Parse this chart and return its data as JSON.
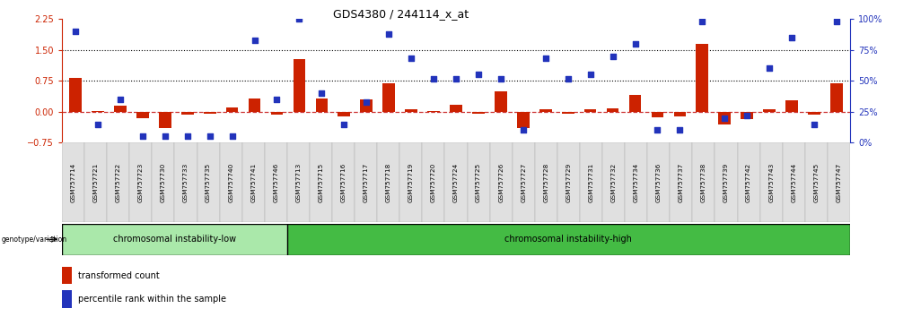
{
  "title": "GDS4380 / 244114_x_at",
  "samples": [
    "GSM757714",
    "GSM757721",
    "GSM757722",
    "GSM757723",
    "GSM757730",
    "GSM757733",
    "GSM757735",
    "GSM757740",
    "GSM757741",
    "GSM757746",
    "GSM757713",
    "GSM757715",
    "GSM757716",
    "GSM757717",
    "GSM757718",
    "GSM757719",
    "GSM757720",
    "GSM757724",
    "GSM757725",
    "GSM757726",
    "GSM757727",
    "GSM757728",
    "GSM757729",
    "GSM757731",
    "GSM757732",
    "GSM757734",
    "GSM757736",
    "GSM757737",
    "GSM757738",
    "GSM757739",
    "GSM757742",
    "GSM757743",
    "GSM757744",
    "GSM757745",
    "GSM757747"
  ],
  "red_bars": [
    0.82,
    0.02,
    0.15,
    -0.15,
    -0.4,
    -0.07,
    -0.05,
    0.1,
    0.32,
    -0.07,
    1.28,
    0.32,
    -0.12,
    0.3,
    0.68,
    0.07,
    0.02,
    0.17,
    -0.05,
    0.5,
    -0.4,
    0.07,
    -0.05,
    0.07,
    0.08,
    0.4,
    -0.14,
    -0.12,
    1.65,
    -0.3,
    -0.18,
    0.07,
    0.27,
    -0.07,
    0.68
  ],
  "blue_dots": [
    90,
    15,
    35,
    5,
    5,
    5,
    5,
    5,
    83,
    35,
    100,
    40,
    15,
    33,
    88,
    68,
    52,
    52,
    55,
    52,
    10,
    68,
    52,
    55,
    70,
    80,
    10,
    10,
    98,
    20,
    22,
    60,
    85,
    15,
    98
  ],
  "group1_label": "chromosomal instability-low",
  "group2_label": "chromosomal instability-high",
  "group1_count": 10,
  "group2_count": 25,
  "ylim_left": [
    -0.75,
    2.25
  ],
  "ylim_right": [
    0,
    100
  ],
  "yticks_left": [
    -0.75,
    0.0,
    0.75,
    1.5,
    2.25
  ],
  "yticks_right": [
    0,
    25,
    50,
    75,
    100
  ],
  "hline_values": [
    0.75,
    1.5
  ],
  "bar_color": "#cc2200",
  "dot_color": "#2233bb",
  "zero_line_color": "#cc3333",
  "group1_bg": "#aae8aa",
  "group2_bg": "#44bb44",
  "legend_bar_label": "transformed count",
  "legend_dot_label": "percentile rank within the sample",
  "bg_color": "#ffffff"
}
